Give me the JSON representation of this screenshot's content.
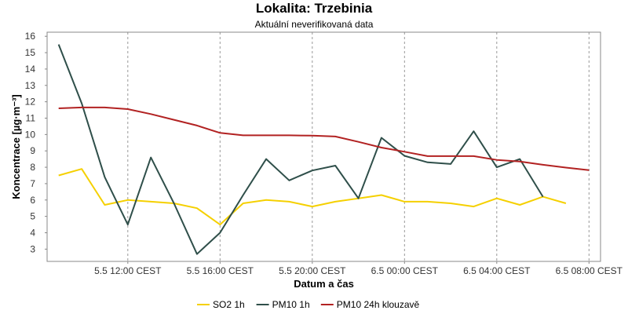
{
  "chart_data": {
    "type": "line",
    "title": "Lokalita: Trzebinia",
    "subtitle": "Aktuální neverifikovaná data",
    "xlabel": "Datum a čas",
    "ylabel": "Koncentrace [µg·m⁻³]",
    "ylim": [
      2.25,
      16.25
    ],
    "y_ticks": [
      3,
      4,
      5,
      6,
      7,
      8,
      9,
      10,
      11,
      12,
      13,
      14,
      15,
      16
    ],
    "x_ticks": [
      "5.5 12:00 CEST",
      "5.5 16:00 CEST",
      "5.5 20:00 CEST",
      "6.5 00:00 CEST",
      "6.5 04:00 CEST",
      "6.5 08:00 CEST"
    ],
    "x_tick_hours": [
      12,
      16,
      20,
      24,
      28,
      32
    ],
    "xlim_hours": [
      8.5,
      32.5
    ],
    "grid": true,
    "legend_position": "bottom",
    "series": [
      {
        "name": "SO2 1h",
        "color": "#f5d000",
        "x_hours": [
          9,
          10,
          11,
          12,
          13,
          14,
          15,
          16,
          17,
          18,
          19,
          20,
          21,
          22,
          23,
          24,
          25,
          26,
          27,
          28,
          29,
          30,
          31,
          32
        ],
        "values": [
          7.5,
          7.9,
          5.7,
          6.0,
          5.9,
          5.8,
          5.5,
          4.5,
          5.8,
          6.0,
          5.9,
          5.6,
          5.9,
          6.1,
          6.3,
          5.9,
          5.9,
          5.8,
          5.6,
          6.1,
          5.7,
          6.2,
          5.8,
          null
        ]
      },
      {
        "name": "PM10 1h",
        "color": "#2f4f4a",
        "x_hours": [
          9,
          10,
          11,
          12,
          13,
          14,
          15,
          16,
          17,
          18,
          19,
          20,
          21,
          22,
          23,
          24,
          25,
          26,
          27,
          28,
          29,
          30,
          31,
          32
        ],
        "values": [
          15.5,
          11.9,
          7.4,
          4.5,
          8.6,
          5.8,
          2.7,
          4.0,
          6.3,
          8.5,
          7.2,
          7.8,
          8.1,
          6.1,
          9.8,
          8.7,
          8.3,
          8.2,
          10.2,
          8.0,
          8.5,
          6.2,
          null,
          null
        ]
      },
      {
        "name": "PM10 24h klouzavě",
        "color": "#b22222",
        "x_hours": [
          9,
          10,
          11,
          12,
          13,
          14,
          15,
          16,
          17,
          18,
          19,
          20,
          21,
          22,
          23,
          24,
          25,
          26,
          27,
          28,
          29,
          30,
          31,
          32
        ],
        "values": [
          11.6,
          11.65,
          11.65,
          11.55,
          11.25,
          10.9,
          10.55,
          10.1,
          9.95,
          9.95,
          9.95,
          9.93,
          9.88,
          9.55,
          9.2,
          8.95,
          8.68,
          8.68,
          8.68,
          8.45,
          8.35,
          8.15,
          7.98,
          7.82
        ]
      }
    ]
  }
}
